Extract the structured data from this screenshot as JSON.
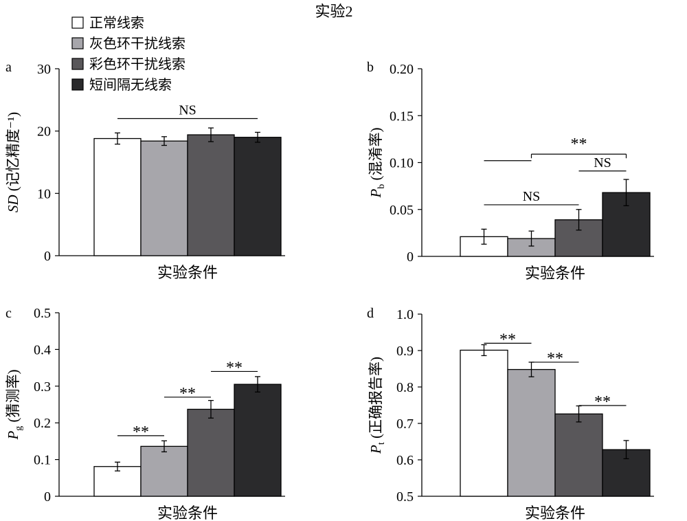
{
  "figure_title": "实验2",
  "legend_position": "top-left",
  "series_colors": [
    "#ffffff",
    "#a7a6ab",
    "#59575a",
    "#2a2a2c"
  ],
  "legend": [
    "正常线索",
    "灰色环干扰线索",
    "彩色环干扰线索",
    "短间隔无线索"
  ],
  "chart_data": [
    {
      "type": "bar",
      "panel": "a",
      "xlabel": "实验条件",
      "ylabel": "SD (记忆精度⁻¹)",
      "ylim": [
        0,
        30
      ],
      "yticks": [
        "0",
        "10",
        "20",
        "30"
      ],
      "series": [
        {
          "name": "正常线索",
          "value": 18.8,
          "error": 0.9
        },
        {
          "name": "灰色环干扰线索",
          "value": 18.4,
          "error": 0.7
        },
        {
          "name": "彩色环干扰线索",
          "value": 19.4,
          "error": 1.1
        },
        {
          "name": "短间隔无线索",
          "value": 19.0,
          "error": 0.8
        }
      ],
      "annotations": [
        {
          "from": 0,
          "to": 3,
          "y": 22.0,
          "label": "NS"
        }
      ]
    },
    {
      "type": "bar",
      "panel": "b",
      "xlabel": "实验条件",
      "ylabel_main": "P",
      "ylabel_sub": "b",
      "ylabel_rest": " (混淆率)",
      "ylim": [
        0,
        0.2
      ],
      "yticks": [
        "0",
        "0.05",
        "0.10",
        "0.15",
        "0.20"
      ],
      "series": [
        {
          "name": "正常线索",
          "value": 0.021,
          "error": 0.008
        },
        {
          "name": "灰色环干扰线索",
          "value": 0.019,
          "error": 0.008
        },
        {
          "name": "彩色环干扰线索",
          "value": 0.039,
          "error": 0.011
        },
        {
          "name": "短间隔无线索",
          "value": 0.068,
          "error": 0.014
        }
      ],
      "annotations": [
        {
          "from": 0,
          "to": 2,
          "y": 0.055,
          "label": "NS"
        },
        {
          "from": 2,
          "to": 3,
          "y": 0.091,
          "label": "NS"
        },
        {
          "from": 0,
          "to": 1,
          "y": 0.102,
          "label": ""
        },
        {
          "from": 1,
          "to": 3,
          "y": 0.109,
          "label": "**",
          "label_y": 0.12
        }
      ]
    },
    {
      "type": "bar",
      "panel": "c",
      "xlabel": "实验条件",
      "ylabel_main": "P",
      "ylabel_sub": "g",
      "ylabel_rest": " (猜测率)",
      "ylim": [
        0,
        0.5
      ],
      "yticks": [
        "0",
        "0.1",
        "0.2",
        "0.3",
        "0.4",
        "0.5"
      ],
      "series": [
        {
          "name": "正常线索",
          "value": 0.081,
          "error": 0.012
        },
        {
          "name": "灰色环干扰线索",
          "value": 0.136,
          "error": 0.015
        },
        {
          "name": "彩色环干扰线索",
          "value": 0.237,
          "error": 0.024
        },
        {
          "name": "短间隔无线索",
          "value": 0.305,
          "error": 0.021
        }
      ],
      "annotations": [
        {
          "from": 0,
          "to": 1,
          "y": 0.165,
          "label": "**"
        },
        {
          "from": 1,
          "to": 2,
          "y": 0.27,
          "label": "**"
        },
        {
          "from": 2,
          "to": 3,
          "y": 0.34,
          "label": "**"
        }
      ]
    },
    {
      "type": "bar",
      "panel": "d",
      "xlabel": "实验条件",
      "ylabel_main": "P",
      "ylabel_sub": "t",
      "ylabel_rest": " (正确报告率)",
      "ylim": [
        0.5,
        1.0
      ],
      "yticks": [
        "0.5",
        "0.6",
        "0.7",
        "0.8",
        "0.9",
        "1.0"
      ],
      "series": [
        {
          "name": "正常线索",
          "value": 0.901,
          "error": 0.015
        },
        {
          "name": "灰色环干扰线索",
          "value": 0.848,
          "error": 0.02
        },
        {
          "name": "彩色环干扰线索",
          "value": 0.726,
          "error": 0.022
        },
        {
          "name": "短间隔无线索",
          "value": 0.628,
          "error": 0.025
        }
      ],
      "annotations": [
        {
          "from": 0,
          "to": 1,
          "y": 0.92,
          "label": "**"
        },
        {
          "from": 1,
          "to": 2,
          "y": 0.868,
          "label": "**"
        },
        {
          "from": 2,
          "to": 3,
          "y": 0.749,
          "label": "**"
        }
      ]
    }
  ]
}
